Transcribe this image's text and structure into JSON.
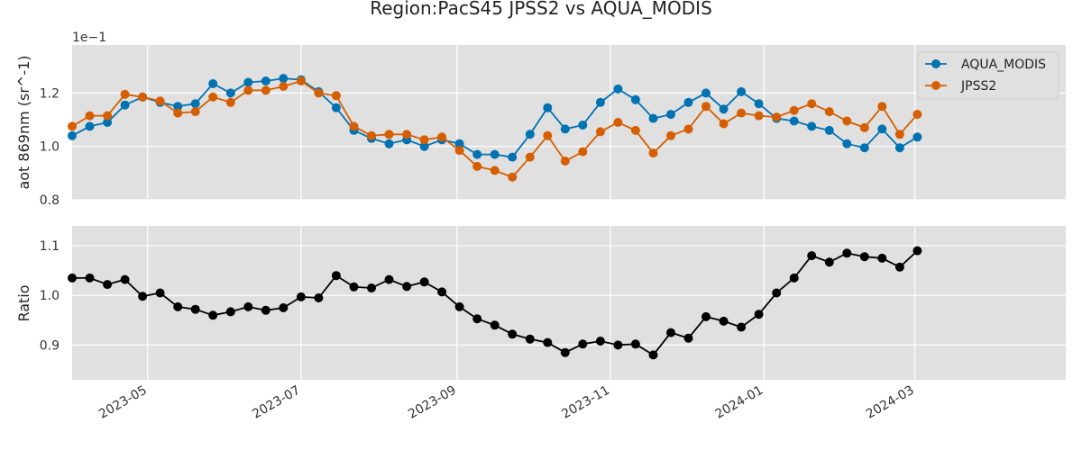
{
  "chart_data": {
    "title": "Region:PacS45 JPSS2 vs AQUA_MODIS",
    "panels": [
      {
        "type": "line",
        "ylabel": "aot 869nm (sr^-1)",
        "offset_text": "1e−1",
        "ylim": [
          0.8,
          1.38
        ],
        "yticks": [
          0.8,
          1.0,
          1.2
        ],
        "ytick_labels": [
          "0.8",
          "1.0",
          "1.2"
        ],
        "legend": "top-right",
        "series": [
          {
            "name": "AQUA_MODIS",
            "color": "#0072B2",
            "values": [
              1.04,
              1.075,
              1.09,
              1.155,
              1.185,
              1.165,
              1.15,
              1.16,
              1.235,
              1.2,
              1.24,
              1.245,
              1.255,
              1.25,
              1.205,
              1.145,
              1.06,
              1.03,
              1.01,
              1.025,
              1.0,
              1.025,
              1.01,
              0.97,
              0.97,
              0.96,
              1.045,
              1.145,
              1.065,
              1.08,
              1.165,
              1.215,
              1.175,
              1.105,
              1.12,
              1.165,
              1.2,
              1.14,
              1.205,
              1.16,
              1.105,
              1.095,
              1.075,
              1.06,
              1.01,
              0.995,
              1.065,
              0.995,
              1.035
            ]
          },
          {
            "name": "JPSS2",
            "color": "#D55E00",
            "values": [
              1.075,
              1.115,
              1.115,
              1.195,
              1.185,
              1.17,
              1.125,
              1.13,
              1.185,
              1.165,
              1.21,
              1.21,
              1.225,
              1.245,
              1.2,
              1.19,
              1.075,
              1.04,
              1.045,
              1.045,
              1.025,
              1.035,
              0.985,
              0.925,
              0.91,
              0.885,
              0.96,
              1.04,
              0.945,
              0.98,
              1.055,
              1.09,
              1.06,
              0.975,
              1.04,
              1.065,
              1.15,
              1.085,
              1.125,
              1.115,
              1.11,
              1.135,
              1.16,
              1.13,
              1.095,
              1.07,
              1.15,
              1.045,
              1.12
            ]
          }
        ]
      },
      {
        "type": "line",
        "ylabel": "Ratio",
        "ylim": [
          0.83,
          1.14
        ],
        "yticks": [
          0.9,
          1.0,
          1.1
        ],
        "ytick_labels": [
          "0.9",
          "1.0",
          "1.1"
        ],
        "series": [
          {
            "color": "#000000",
            "values": [
              1.035,
              1.035,
              1.022,
              1.032,
              0.998,
              1.005,
              0.977,
              0.972,
              0.96,
              0.967,
              0.977,
              0.97,
              0.975,
              0.997,
              0.995,
              1.04,
              1.017,
              1.015,
              1.032,
              1.018,
              1.027,
              1.007,
              0.977,
              0.953,
              0.94,
              0.922,
              0.912,
              0.905,
              0.885,
              0.902,
              0.908,
              0.9,
              0.902,
              0.88,
              0.925,
              0.914,
              0.957,
              0.948,
              0.936,
              0.962,
              1.005,
              1.035,
              1.08,
              1.067,
              1.085,
              1.078,
              1.075,
              1.057,
              1.09
            ]
          }
        ]
      }
    ],
    "x_start": "2023-04-01",
    "x_step_days": 7,
    "xlim": [
      "2023-04-01",
      "2024-04-30"
    ],
    "xticks": [
      "2023-05-01",
      "2023-07-01",
      "2023-09-01",
      "2023-11-01",
      "2024-01-01",
      "2024-03-01"
    ],
    "xtick_labels": [
      "2023-05",
      "2023-07",
      "2023-09",
      "2023-11",
      "2024-01",
      "2024-03"
    ],
    "grid": true
  }
}
